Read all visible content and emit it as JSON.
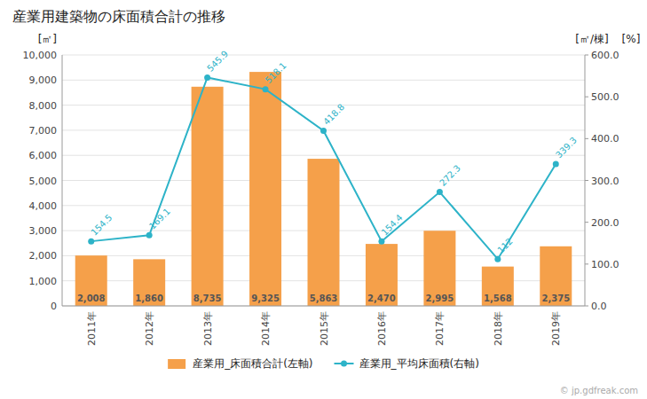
{
  "chart_data": {
    "type": "bar",
    "title": "産業用建築物の床面積合計の推移",
    "y_label": "[㎡]",
    "y2_label": "[㎡/棟]",
    "annotations": [
      {
        "text": "[%]"
      },
      {
        "text": "© jp.gdfreak.com"
      }
    ],
    "categories": [
      "2011年",
      "2012年",
      "2013年",
      "2014年",
      "2015年",
      "2016年",
      "2017年",
      "2018年",
      "2019年"
    ],
    "series": [
      {
        "name": "産業用_床面積合計(左軸)",
        "type": "bar",
        "axis": "y",
        "color": "#f5a04a",
        "values": [
          2008,
          1860,
          8735,
          9325,
          5863,
          2470,
          2995,
          1568,
          2375
        ],
        "value_labels": [
          "2,008",
          "1,860",
          "8,735",
          "9,325",
          "5,863",
          "2,470",
          "2,995",
          "1,568",
          "2,375"
        ],
        "data_labels": true
      },
      {
        "name": "産業用_平均床面積(右軸)",
        "type": "line",
        "axis": "y2",
        "color": "#2db3c8",
        "marker": "circle",
        "values": [
          154.5,
          169.1,
          545.9,
          518.1,
          418.8,
          154.4,
          272.3,
          112.0,
          339.3
        ],
        "data_labels": true
      }
    ],
    "ylim": [
      0,
      10000
    ],
    "yticks": [
      0,
      {
        "value": 1000,
        "label": "1,000"
      },
      {
        "value": 2000,
        "label": "2,000"
      },
      {
        "value": 3000,
        "label": "3,000"
      },
      {
        "value": 4000,
        "label": "4,000"
      },
      {
        "value": 5000,
        "label": "5,000"
      },
      {
        "value": 6000,
        "label": "6,000"
      },
      {
        "value": 7000,
        "label": "7,000"
      },
      {
        "value": 8000,
        "label": "8,000"
      },
      {
        "value": 9000,
        "label": "9,000"
      },
      {
        "value": 10000,
        "label": "10,000"
      }
    ],
    "y2lim": [
      0,
      600
    ],
    "y2ticks": [
      {
        "value": 0,
        "label": "0.0"
      },
      {
        "value": 100,
        "label": "100.0"
      },
      {
        "value": 200,
        "label": "200.0"
      },
      {
        "value": 300,
        "label": "300.0"
      },
      {
        "value": 400,
        "label": "400.0"
      },
      {
        "value": 500,
        "label": "500.0"
      },
      {
        "value": 600,
        "label": "600.0"
      }
    ],
    "grid": true,
    "legend": "bottom"
  }
}
